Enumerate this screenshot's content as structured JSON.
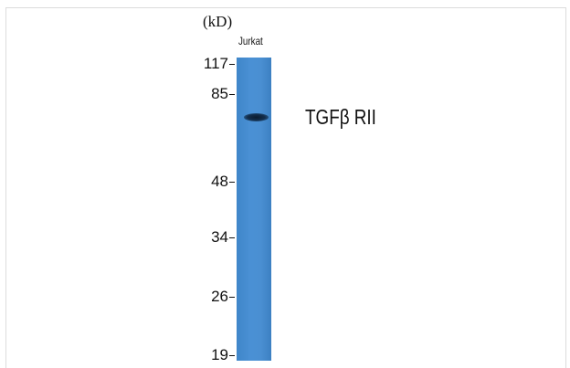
{
  "unit_label": "(kD)",
  "lane_label": "Jurkat",
  "protein_label": "TGFβ RII",
  "markers": [
    "117",
    "85",
    "48",
    "34",
    "26",
    "19"
  ],
  "colors": {
    "lane": "#4a8fd2",
    "band": "#0b1b2e",
    "text": "#111111"
  }
}
